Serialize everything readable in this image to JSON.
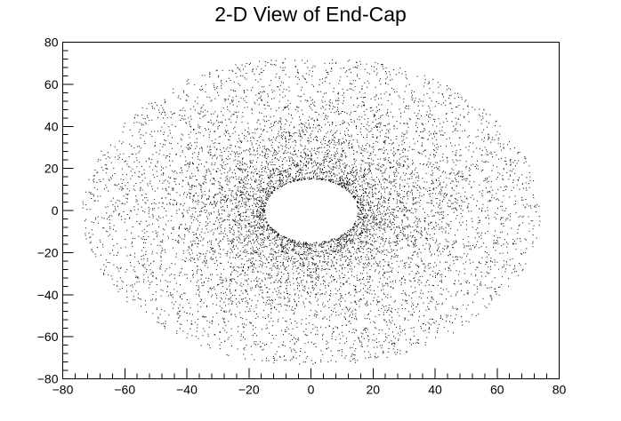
{
  "chart_data": {
    "type": "scatter",
    "title": "2-D View of End-Cap",
    "xlabel": "",
    "ylabel": "",
    "xlim": [
      -80,
      80
    ],
    "ylim": [
      -80,
      80
    ],
    "x_ticks": [
      -80,
      -60,
      -40,
      -20,
      0,
      20,
      40,
      60,
      80
    ],
    "y_ticks": [
      -80,
      -60,
      -40,
      -20,
      0,
      20,
      40,
      60,
      80
    ],
    "x_tick_labels": [
      "−80",
      "−60",
      "−40",
      "−20",
      "0",
      "20",
      "40",
      "60",
      "80"
    ],
    "y_tick_labels": [
      "−80",
      "−60",
      "−40",
      "−20",
      "0",
      "20",
      "40",
      "60",
      "80"
    ],
    "grid": false,
    "legend": "none",
    "series": [
      {
        "marker_color": "#000000",
        "distribution": "annulus",
        "inner_radius": 15,
        "outer_radius": 74,
        "point_count": 60000
      }
    ]
  }
}
